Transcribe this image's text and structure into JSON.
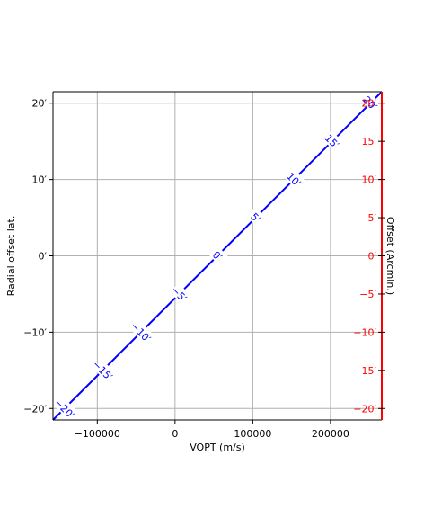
{
  "chart_data": {
    "type": "line",
    "xlabel": "VOPT (m/s)",
    "ylabel": "Radial offset lat.",
    "y2label": "Offset (Arcmin.)",
    "xlim": [
      -157000,
      266000
    ],
    "ylim": [
      -21.5,
      21.5
    ],
    "y2lim": [
      -21.5,
      21.5
    ],
    "grid": true,
    "x_ticks": [
      -100000,
      0,
      100000,
      200000
    ],
    "x_tick_labels": [
      "−100000",
      "0",
      "100000",
      "200000"
    ],
    "y_ticks": [
      -20,
      -10,
      0,
      10,
      20
    ],
    "y_tick_labels": [
      "−20′",
      "−10′",
      "0′",
      "10′",
      "20′"
    ],
    "y2_ticks": [
      -20,
      -15,
      -10,
      -5,
      0,
      5,
      10,
      15,
      20
    ],
    "y2_tick_labels": [
      "−20′",
      "−15′",
      "−10′",
      "−5′",
      "0′",
      "5′",
      "10′",
      "15′",
      "20′"
    ],
    "series": [
      {
        "x": [
          -157000,
          266000
        ],
        "y": [
          -21.5,
          21.5
        ],
        "color": "#0000ff"
      }
    ],
    "curve_labels": [
      {
        "text": "−20",
        "value": -20
      },
      {
        "text": "−15",
        "value": -15
      },
      {
        "text": "−10",
        "value": -10
      },
      {
        "text": "−5",
        "value": -5
      },
      {
        "text": "0",
        "value": 0
      },
      {
        "text": "5",
        "value": 5
      },
      {
        "text": "10",
        "value": 10
      },
      {
        "text": "15",
        "value": 15
      },
      {
        "text": "20",
        "value": 20
      }
    ],
    "colors": {
      "curve": "#0000ff",
      "right_axis": "#ff0000",
      "grid": "#b0b0b0",
      "frame": "#000000"
    }
  }
}
